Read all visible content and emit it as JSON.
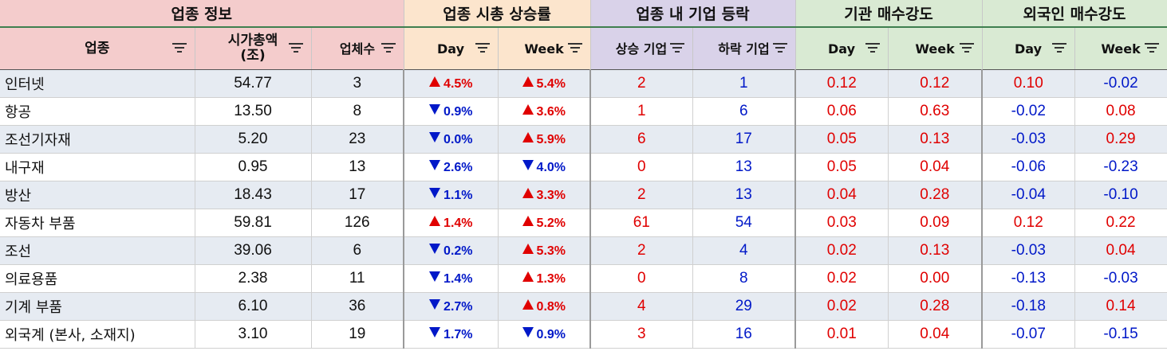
{
  "groups": {
    "info": "업종 정보",
    "mcap_change": "업종 시총 상승률",
    "company_movement": "업종 내 기업 등락",
    "inst_buy": "기관 매수강도",
    "foreign_buy": "외국인 매수강도"
  },
  "columns": {
    "sector": "업종",
    "mcap_line1": "시가총액",
    "mcap_line2": "(조)",
    "count": "업체수",
    "day": "Day",
    "week": "Week",
    "rising": "상승 기업",
    "falling": "하락 기업"
  },
  "colors": {
    "up": "#e00000",
    "down": "#0018c8",
    "info_header": "#f4cccc",
    "change_header": "#fce5cd",
    "movement_header": "#d9d2e9",
    "buy_header": "#d9ead3",
    "alt_row": "#e6ebf2"
  },
  "rows": [
    {
      "name": "인터넷",
      "mcap": "54.77",
      "count": "3",
      "day": "4.5%",
      "day_dir": "up",
      "week": "5.4%",
      "week_dir": "up",
      "rise": "2",
      "fall": "1",
      "inst_day": "0.12",
      "inst_week": "0.12",
      "for_day": "0.10",
      "for_week": "-0.02"
    },
    {
      "name": "항공",
      "mcap": "13.50",
      "count": "8",
      "day": "0.9%",
      "day_dir": "down",
      "week": "3.6%",
      "week_dir": "up",
      "rise": "1",
      "fall": "6",
      "inst_day": "0.06",
      "inst_week": "0.63",
      "for_day": "-0.02",
      "for_week": "0.08"
    },
    {
      "name": "조선기자재",
      "mcap": "5.20",
      "count": "23",
      "day": "0.0%",
      "day_dir": "down",
      "week": "5.9%",
      "week_dir": "up",
      "rise": "6",
      "fall": "17",
      "inst_day": "0.05",
      "inst_week": "0.13",
      "for_day": "-0.03",
      "for_week": "0.29"
    },
    {
      "name": "내구재",
      "mcap": "0.95",
      "count": "13",
      "day": "2.6%",
      "day_dir": "down",
      "week": "4.0%",
      "week_dir": "down",
      "rise": "0",
      "fall": "13",
      "inst_day": "0.05",
      "inst_week": "0.04",
      "for_day": "-0.06",
      "for_week": "-0.23"
    },
    {
      "name": "방산",
      "mcap": "18.43",
      "count": "17",
      "day": "1.1%",
      "day_dir": "down",
      "week": "3.3%",
      "week_dir": "up",
      "rise": "2",
      "fall": "13",
      "inst_day": "0.04",
      "inst_week": "0.28",
      "for_day": "-0.04",
      "for_week": "-0.10"
    },
    {
      "name": "자동차 부품",
      "mcap": "59.81",
      "count": "126",
      "day": "1.4%",
      "day_dir": "up",
      "week": "5.2%",
      "week_dir": "up",
      "rise": "61",
      "fall": "54",
      "inst_day": "0.03",
      "inst_week": "0.09",
      "for_day": "0.12",
      "for_week": "0.22"
    },
    {
      "name": "조선",
      "mcap": "39.06",
      "count": "6",
      "day": "0.2%",
      "day_dir": "down",
      "week": "5.3%",
      "week_dir": "up",
      "rise": "2",
      "fall": "4",
      "inst_day": "0.02",
      "inst_week": "0.13",
      "for_day": "-0.03",
      "for_week": "0.04"
    },
    {
      "name": "의료용품",
      "mcap": "2.38",
      "count": "11",
      "day": "1.4%",
      "day_dir": "down",
      "week": "1.3%",
      "week_dir": "up",
      "rise": "0",
      "fall": "8",
      "inst_day": "0.02",
      "inst_week": "0.00",
      "for_day": "-0.13",
      "for_week": "-0.03"
    },
    {
      "name": "기계 부품",
      "mcap": "6.10",
      "count": "36",
      "day": "2.7%",
      "day_dir": "down",
      "week": "0.8%",
      "week_dir": "up",
      "rise": "4",
      "fall": "29",
      "inst_day": "0.02",
      "inst_week": "0.28",
      "for_day": "-0.18",
      "for_week": "0.14"
    },
    {
      "name": "외국계 (본사, 소재지)",
      "mcap": "3.10",
      "count": "19",
      "day": "1.7%",
      "day_dir": "down",
      "week": "0.9%",
      "week_dir": "down",
      "rise": "3",
      "fall": "16",
      "inst_day": "0.01",
      "inst_week": "0.04",
      "for_day": "-0.07",
      "for_week": "-0.15"
    }
  ]
}
